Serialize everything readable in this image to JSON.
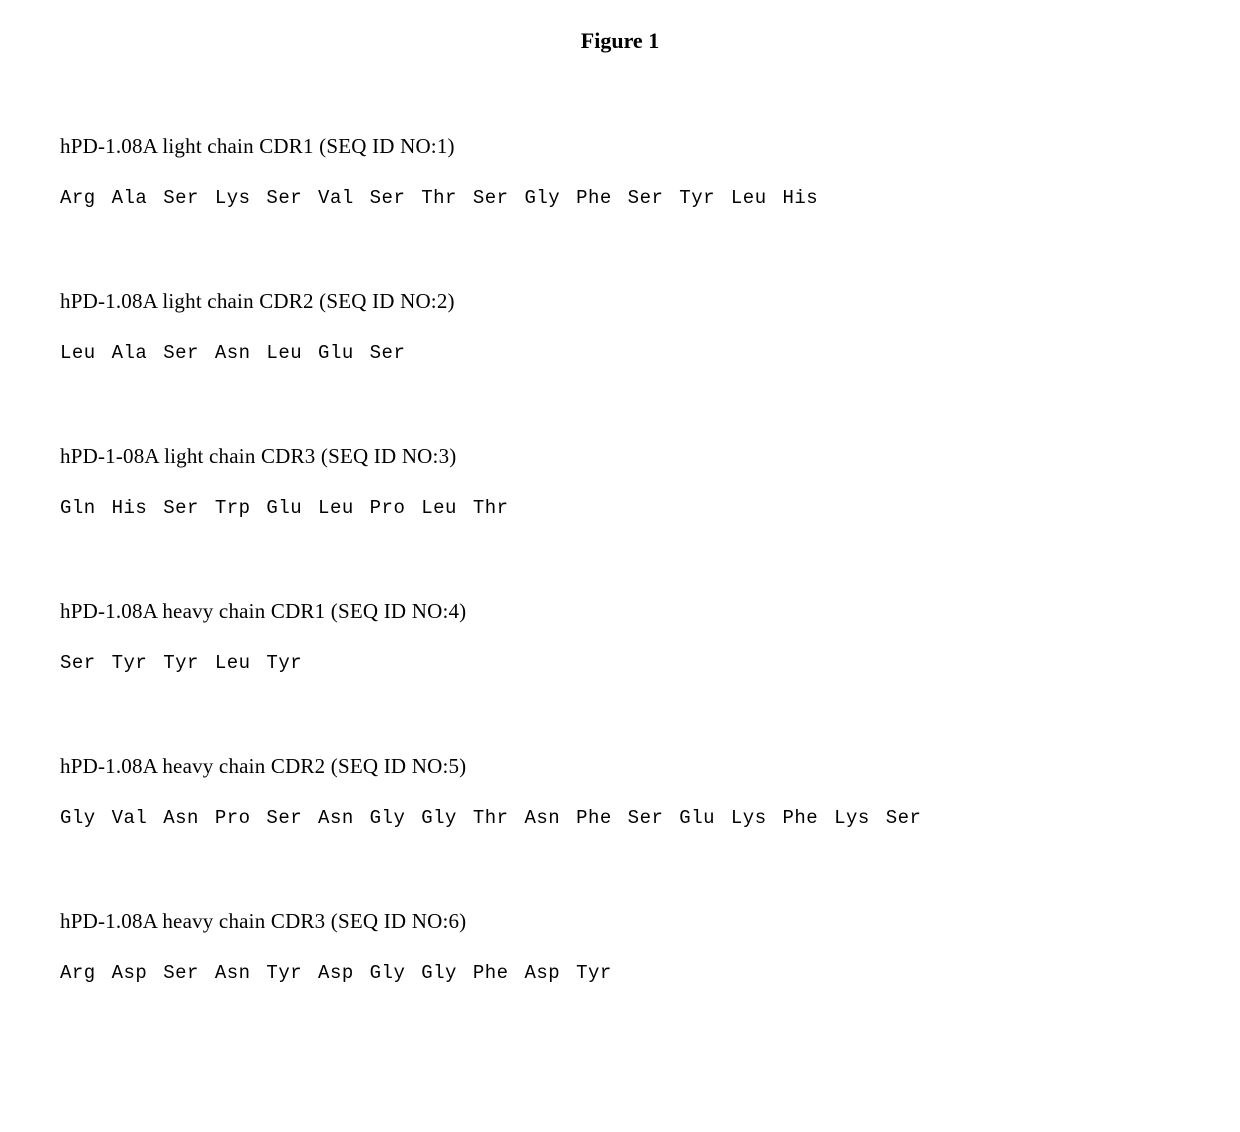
{
  "figure": {
    "title": "Figure 1",
    "title_fontsize": 22,
    "title_fontweight": "bold",
    "background_color": "#ffffff",
    "text_color": "#000000",
    "label_font": "Times New Roman",
    "label_fontsize": 21,
    "sequence_font": "Courier New",
    "sequence_fontsize": 19,
    "sequences": [
      {
        "label": "hPD-1.08A light chain CDR1 (SEQ ID NO:1)",
        "residues": "Arg Ala Ser Lys Ser Val Ser Thr Ser Gly Phe Ser Tyr Leu His"
      },
      {
        "label": "hPD-1.08A light chain CDR2 (SEQ ID NO:2)",
        "residues": "Leu Ala Ser Asn Leu Glu Ser"
      },
      {
        "label": "hPD-1-08A light chain CDR3 (SEQ ID NO:3)",
        "residues": "Gln His Ser Trp Glu Leu Pro Leu Thr"
      },
      {
        "label": "hPD-1.08A heavy chain CDR1 (SEQ ID NO:4)",
        "residues": "Ser Tyr Tyr Leu Tyr"
      },
      {
        "label": "hPD-1.08A heavy chain CDR2 (SEQ ID NO:5)",
        "residues": "Gly Val Asn Pro Ser Asn Gly Gly Thr Asn Phe Ser Glu Lys Phe Lys Ser"
      },
      {
        "label": "hPD-1.08A heavy chain CDR3 (SEQ ID NO:6)",
        "residues": "Arg Asp Ser Asn Tyr Asp Gly Gly Phe Asp Tyr"
      }
    ]
  }
}
